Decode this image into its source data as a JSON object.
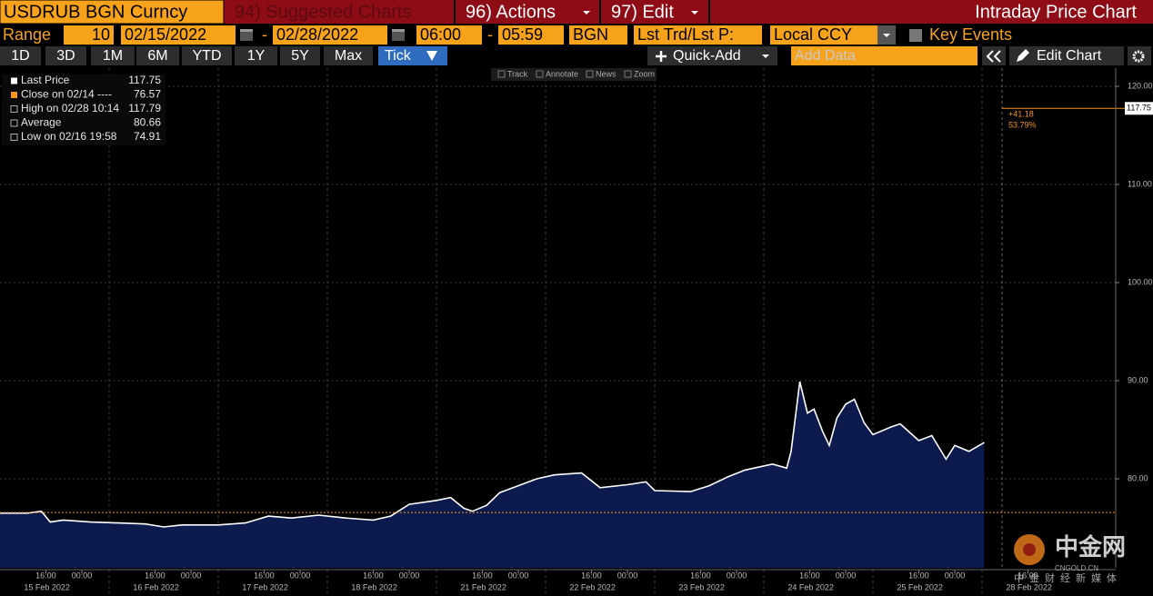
{
  "toolbar": {
    "ticker": "USDRUB BGN Curncy",
    "suggested": "94) Suggested Charts",
    "actions": "96) Actions",
    "edit": "97) Edit",
    "title": "Intraday Price Chart"
  },
  "range_bar": {
    "range_label": "Range",
    "range_value": "10",
    "start_date": "02/15/2022",
    "date_separator": "-",
    "end_date": "02/28/2022",
    "start_time": "06:00",
    "time_separator": "-",
    "end_time": "05:59",
    "source": "BGN",
    "field": "Lst Trd/Lst P:",
    "currency": "Local CCY",
    "key_events": "Key Events"
  },
  "period_bar": {
    "periods": [
      "1D",
      "3D",
      "1M",
      "6M",
      "YTD",
      "1Y",
      "5Y",
      "Max"
    ],
    "tick": "Tick",
    "quick_add": "Quick-Add",
    "add_data": "Add Data",
    "edit_chart": "Edit Chart"
  },
  "chart_tools": [
    "Track",
    "Annotate",
    "News",
    "Zoom"
  ],
  "legend": [
    {
      "label": "Last Price",
      "value": "117.75"
    },
    {
      "label": "Close on 02/14 ----",
      "value": "76.57"
    },
    {
      "label": "High on 02/28 10:14",
      "value": "117.79"
    },
    {
      "label": "Average",
      "value": "80.66"
    },
    {
      "label": "Low on 02/16 19:58",
      "value": "74.91"
    }
  ],
  "watermark": {
    "brand": "中金网",
    "site": "CNGOLD.CN",
    "tagline": "中金财经新媒体"
  },
  "chart_data": {
    "type": "area",
    "series": [
      {
        "color": "#ffffff",
        "fill": "#0c1a4d",
        "x": [
          0,
          0.25,
          0.38,
          0.46,
          0.58,
          0.83,
          1.08,
          1.33,
          1.5,
          1.67,
          2.0,
          2.25,
          2.46,
          2.67,
          2.92,
          3.17,
          3.42,
          3.58,
          3.75,
          4.0,
          4.13,
          4.25,
          4.33,
          4.46,
          4.58,
          4.75,
          4.92,
          5.08,
          5.33,
          5.5,
          5.75,
          5.92,
          6.0,
          6.33,
          6.5,
          6.67,
          6.83,
          7.08,
          7.21,
          7.25,
          7.33,
          7.4,
          7.46,
          7.54,
          7.6,
          7.67,
          7.75,
          7.83,
          7.92,
          8.0,
          8.17,
          8.25,
          8.42,
          8.54,
          8.67,
          8.75,
          8.88,
          9.02
        ],
        "values": [
          76.5,
          76.5,
          76.7,
          75.6,
          75.8,
          75.6,
          75.5,
          75.4,
          75.1,
          75.3,
          75.3,
          75.5,
          76.2,
          76.0,
          76.3,
          76.0,
          75.8,
          76.2,
          77.4,
          77.8,
          78.1,
          77.0,
          76.7,
          77.3,
          78.6,
          79.3,
          80.0,
          80.4,
          80.6,
          79.1,
          79.4,
          79.7,
          78.8,
          78.7,
          79.3,
          80.2,
          80.9,
          81.5,
          81.1,
          82.8,
          89.9,
          86.7,
          87.1,
          84.8,
          83.4,
          86.2,
          87.6,
          88.1,
          85.7,
          84.5,
          85.3,
          85.6,
          83.9,
          84.4,
          82.0,
          83.4,
          82.8,
          83.7
        ]
      }
    ],
    "xlim": [
      0,
      10.225
    ],
    "ylim": [
      70.93,
      121.85
    ],
    "yticks": [
      {
        "value": 80,
        "label": "80.00"
      },
      {
        "value": 90,
        "label": "90.00"
      },
      {
        "value": 100,
        "label": "100.00"
      },
      {
        "value": 110,
        "label": "110.00"
      },
      {
        "value": 120,
        "label": "120.00"
      }
    ],
    "xticks": [
      {
        "value": 0.42,
        "label": "16:00"
      },
      {
        "value": 0.75,
        "label": "00:00"
      },
      {
        "value": 1.42,
        "label": "16:00"
      },
      {
        "value": 1.75,
        "label": "00:00"
      },
      {
        "value": 2.42,
        "label": "16:00"
      },
      {
        "value": 2.75,
        "label": "00:00"
      },
      {
        "value": 3.42,
        "label": "16:00"
      },
      {
        "value": 3.75,
        "label": "00:00"
      },
      {
        "value": 4.42,
        "label": "16:00"
      },
      {
        "value": 4.75,
        "label": "00:00"
      },
      {
        "value": 5.42,
        "label": "16:00"
      },
      {
        "value": 5.75,
        "label": "00:00"
      },
      {
        "value": 6.42,
        "label": "16:00"
      },
      {
        "value": 6.75,
        "label": "00:00"
      },
      {
        "value": 7.42,
        "label": "16:00"
      },
      {
        "value": 7.75,
        "label": "00:00"
      },
      {
        "value": 8.42,
        "label": "16:00"
      },
      {
        "value": 8.75,
        "label": "00:00"
      },
      {
        "value": 9.42,
        "label": "16:00"
      }
    ],
    "x_date_labels": [
      {
        "value": 0.43,
        "label": "15 Feb 2022"
      },
      {
        "value": 1.43,
        "label": "16 Feb 2022"
      },
      {
        "value": 2.43,
        "label": "17 Feb 2022"
      },
      {
        "value": 3.43,
        "label": "18 Feb 2022"
      },
      {
        "value": 4.43,
        "label": "21 Feb 2022"
      },
      {
        "value": 5.43,
        "label": "22 Feb 2022"
      },
      {
        "value": 6.43,
        "label": "23 Feb 2022"
      },
      {
        "value": 7.43,
        "label": "24 Feb 2022"
      },
      {
        "value": 8.43,
        "label": "25 Feb 2022"
      },
      {
        "value": 9.43,
        "label": "28 Feb 2022"
      }
    ],
    "reference_lines": [
      {
        "value": 76.57,
        "color": "#f7941d"
      },
      {
        "value": 117.75,
        "color": "#f7941d",
        "label": "117.75"
      }
    ],
    "annotations": [
      "+41.18",
      "53.79%"
    ],
    "grid": true
  }
}
